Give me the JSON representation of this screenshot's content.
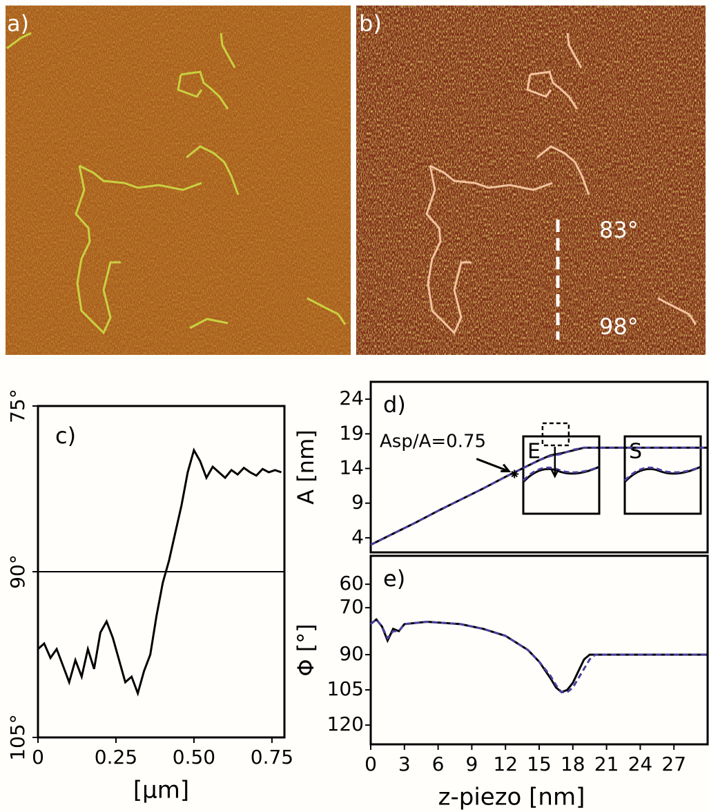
{
  "images": [
    {
      "label": "a)"
    },
    {
      "label": "b)",
      "annotations": [
        "83°",
        "98°"
      ]
    }
  ],
  "chart_data": [
    {
      "type": "line",
      "title": "c)",
      "xlabel": "[µm]",
      "y_inverted": true,
      "x": [
        0,
        0.02,
        0.04,
        0.06,
        0.08,
        0.1,
        0.12,
        0.14,
        0.16,
        0.18,
        0.2,
        0.22,
        0.24,
        0.26,
        0.28,
        0.3,
        0.32,
        0.34,
        0.36,
        0.38,
        0.4,
        0.42,
        0.44,
        0.46,
        0.48,
        0.5,
        0.52,
        0.54,
        0.56,
        0.58,
        0.6,
        0.62,
        0.64,
        0.66,
        0.68,
        0.7,
        0.72,
        0.74,
        0.76,
        0.78
      ],
      "series": [
        {
          "color": "#000000",
          "values": [
            97,
            96.5,
            97.8,
            97,
            98.5,
            100,
            98,
            99.5,
            97,
            98.8,
            95.5,
            94.5,
            96,
            98,
            100,
            99.5,
            101,
            99,
            97.5,
            94,
            91,
            89,
            86.5,
            84,
            81,
            79,
            80,
            81.5,
            80.5,
            81,
            81.5,
            80.8,
            81.2,
            80.6,
            81,
            81.3,
            80.7,
            81,
            80.8,
            81
          ]
        }
      ],
      "hline": 90,
      "xlim": [
        0,
        0.79
      ],
      "ylim": [
        75,
        105
      ],
      "xticks": [
        0,
        0.25,
        {
          "value": 0.5,
          "label": "0.50"
        },
        0.75
      ],
      "yticks": [
        {
          "value": 75,
          "label": "75°"
        },
        {
          "value": 90,
          "label": "90°"
        },
        {
          "value": 105,
          "label": "105°"
        }
      ]
    },
    {
      "type": "line",
      "title": "d)",
      "ylabel": "A [nm]",
      "x": [
        0,
        2,
        4,
        6,
        8,
        10,
        12,
        14,
        15,
        16,
        17,
        18,
        19,
        20,
        22,
        24,
        26,
        28,
        30
      ],
      "series": [
        {
          "color": "#000000",
          "values": [
            3,
            4.6,
            6.2,
            7.9,
            9.5,
            11.1,
            12.8,
            14.4,
            15.2,
            15.9,
            16.2,
            16.6,
            17,
            17,
            17,
            17,
            17,
            17,
            17
          ]
        },
        {
          "color": "#4a3fa0",
          "dash": true,
          "values": [
            3,
            4.6,
            6.2,
            7.9,
            9.5,
            11.1,
            12.8,
            14.4,
            15.2,
            15.8,
            16.1,
            16.7,
            17,
            17,
            17,
            17,
            17,
            17,
            17
          ]
        }
      ],
      "annotation": {
        "text": "Asp/A=0.75",
        "x": 12.8,
        "y": 13.2
      },
      "insets": [
        {
          "label": "E"
        },
        {
          "label": "S"
        }
      ],
      "xlim": [
        0,
        30
      ],
      "ylim": [
        1.9,
        26.5
      ],
      "yticks": [
        4,
        9,
        14,
        19,
        24
      ]
    },
    {
      "type": "line",
      "title": "e)",
      "ylabel": "Φ [°]",
      "xlabel": "z-piezo [nm]",
      "y_inverted": true,
      "x": [
        0,
        0.5,
        1,
        1.5,
        2,
        2.5,
        3,
        5,
        8,
        10,
        12,
        14,
        15,
        16,
        16.5,
        17,
        17.5,
        18,
        18.5,
        19,
        19.5,
        20,
        22,
        24,
        26,
        28,
        30
      ],
      "series": [
        {
          "color": "#000000",
          "values": [
            77,
            75,
            78,
            84,
            79,
            80,
            77,
            76,
            77,
            79,
            82,
            88,
            93,
            100,
            104,
            106,
            105,
            102,
            97,
            92,
            90,
            90,
            90,
            90,
            90,
            90,
            90
          ]
        },
        {
          "color": "#4a3fa0",
          "dash": true,
          "values": [
            77,
            75,
            78,
            83,
            80,
            80,
            77,
            76,
            77,
            79,
            82,
            88,
            93,
            99,
            103,
            106,
            106,
            104,
            100,
            96,
            92,
            90,
            90,
            90,
            90,
            90,
            90
          ]
        }
      ],
      "xlim": [
        0,
        30
      ],
      "ylim": [
        47.9,
        128.2
      ],
      "xticks": [
        0,
        3,
        6,
        9,
        12,
        15,
        18,
        21,
        24,
        27
      ],
      "yticks": [
        60,
        70,
        90,
        105,
        120
      ]
    }
  ]
}
